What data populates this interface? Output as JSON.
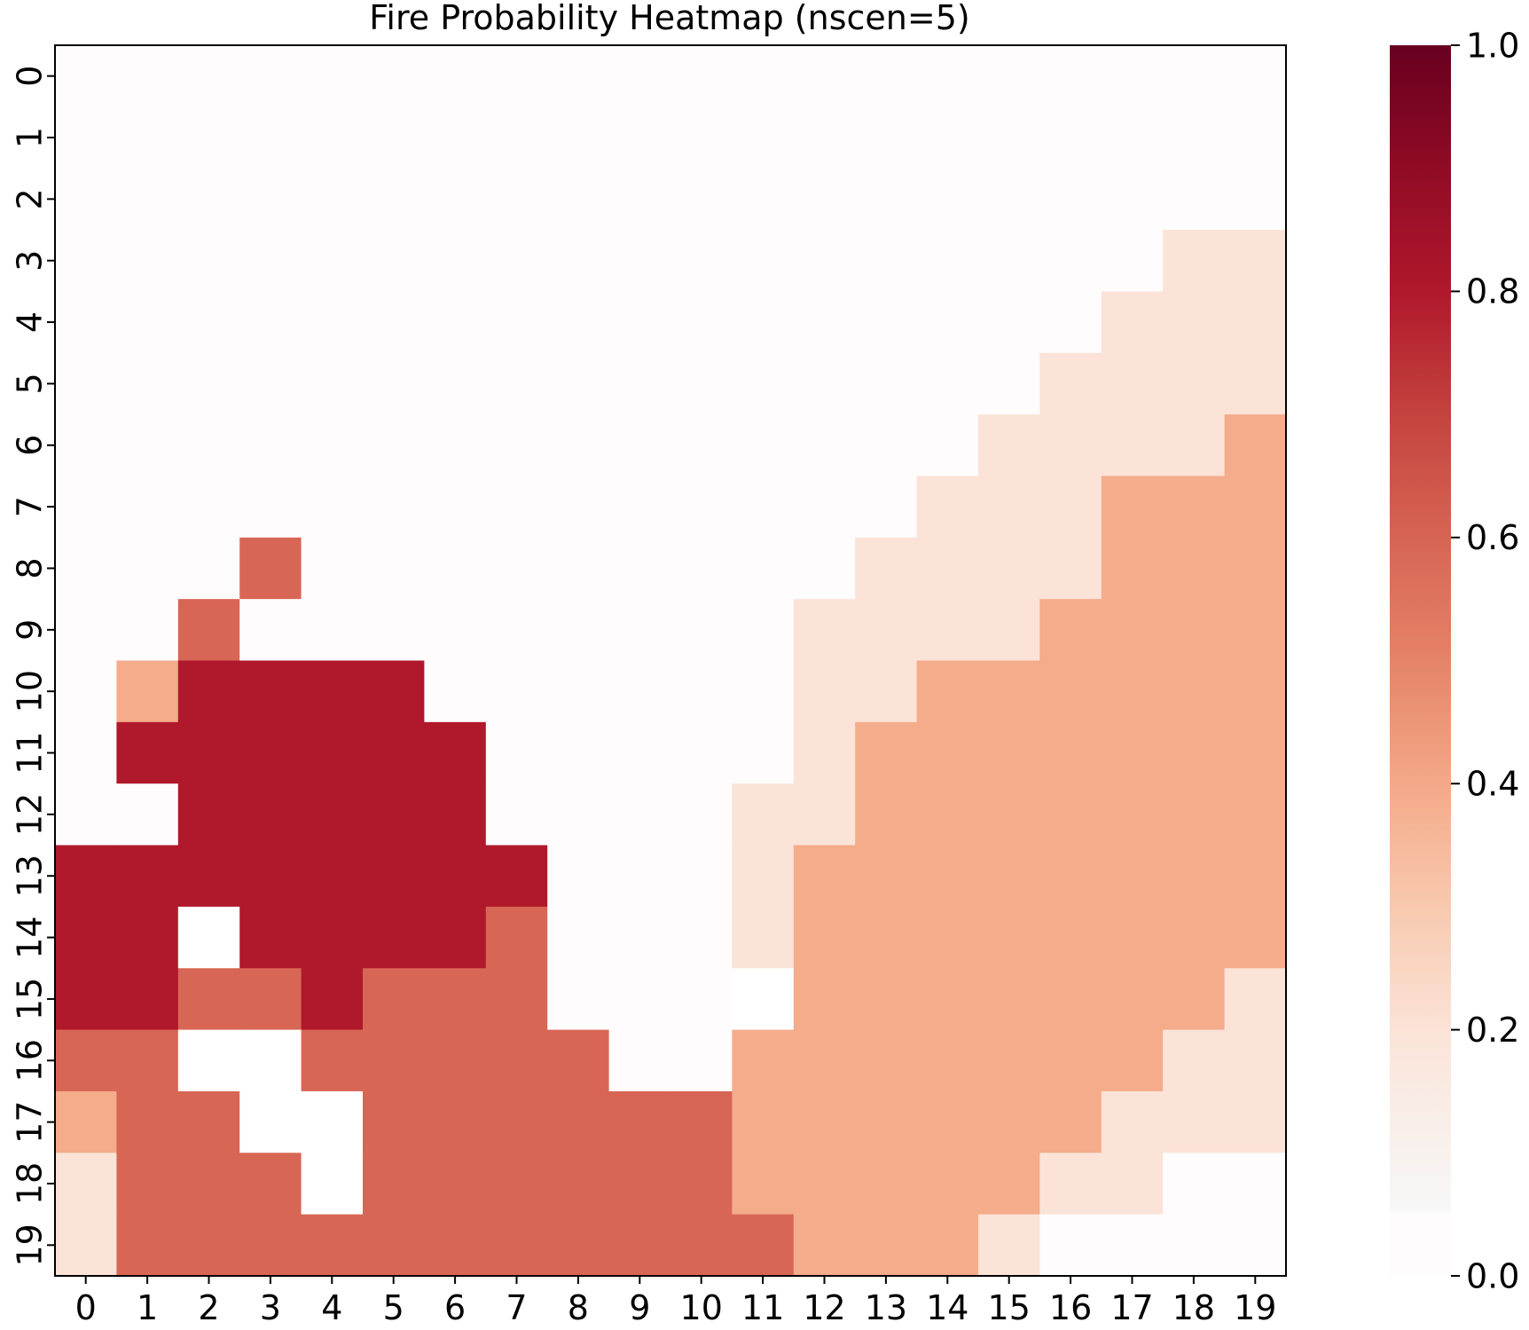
{
  "chart_data": {
    "type": "heatmap",
    "title": "Fire Probability Heatmap (nscen=5)",
    "xlabel": "",
    "ylabel": "",
    "x_ticks": [
      "0",
      "1",
      "2",
      "3",
      "4",
      "5",
      "6",
      "7",
      "8",
      "9",
      "10",
      "11",
      "12",
      "13",
      "14",
      "15",
      "16",
      "17",
      "18",
      "19"
    ],
    "y_ticks": [
      "0",
      "1",
      "2",
      "3",
      "4",
      "5",
      "6",
      "7",
      "8",
      "9",
      "10",
      "11",
      "12",
      "13",
      "14",
      "15",
      "16",
      "17",
      "18",
      "19"
    ],
    "colormap": "RdBu_r (upper half, white to dark red)",
    "vmin": 0.0,
    "vmax": 1.0,
    "colorbar_ticks": [
      "0.0",
      "0.2",
      "0.4",
      "0.6",
      "0.8",
      "1.0"
    ],
    "colorbar_values": [
      0.0,
      0.2,
      0.4,
      0.6,
      0.8,
      1.0
    ],
    "masked_color": "#ffffff",
    "masked_cells": [
      [
        2,
        14
      ],
      [
        2,
        16
      ],
      [
        3,
        16
      ],
      [
        3,
        17
      ],
      [
        4,
        17
      ],
      [
        4,
        18
      ],
      [
        11,
        15
      ]
    ],
    "values": [
      [
        0,
        0,
        0,
        0,
        0,
        0,
        0,
        0,
        0,
        0,
        0,
        0,
        0,
        0,
        0,
        0,
        0,
        0,
        0,
        0
      ],
      [
        0,
        0,
        0,
        0,
        0,
        0,
        0,
        0,
        0,
        0,
        0,
        0,
        0,
        0,
        0,
        0,
        0,
        0,
        0,
        0
      ],
      [
        0,
        0,
        0,
        0,
        0,
        0,
        0,
        0,
        0,
        0,
        0,
        0,
        0,
        0,
        0,
        0,
        0,
        0,
        0,
        0
      ],
      [
        0,
        0,
        0,
        0,
        0,
        0,
        0,
        0,
        0,
        0,
        0,
        0,
        0,
        0,
        0,
        0,
        0,
        0,
        0.2,
        0.2
      ],
      [
        0,
        0,
        0,
        0,
        0,
        0,
        0,
        0,
        0,
        0,
        0,
        0,
        0,
        0,
        0,
        0,
        0,
        0.2,
        0.2,
        0.2
      ],
      [
        0,
        0,
        0,
        0,
        0,
        0,
        0,
        0,
        0,
        0,
        0,
        0,
        0,
        0,
        0,
        0,
        0.2,
        0.2,
        0.2,
        0.2
      ],
      [
        0,
        0,
        0,
        0,
        0,
        0,
        0,
        0,
        0,
        0,
        0,
        0,
        0,
        0,
        0,
        0.2,
        0.2,
        0.2,
        0.2,
        0.4
      ],
      [
        0,
        0,
        0,
        0,
        0,
        0,
        0,
        0,
        0,
        0,
        0,
        0,
        0,
        0,
        0.2,
        0.2,
        0.2,
        0.4,
        0.4,
        0.4
      ],
      [
        0,
        0,
        0,
        0.6,
        0,
        0,
        0,
        0,
        0,
        0,
        0,
        0,
        0,
        0.2,
        0.2,
        0.2,
        0.2,
        0.4,
        0.4,
        0.4
      ],
      [
        0,
        0,
        0.6,
        0,
        0,
        0,
        0,
        0,
        0,
        0,
        0,
        0,
        0.2,
        0.2,
        0.2,
        0.2,
        0.4,
        0.4,
        0.4,
        0.4
      ],
      [
        0,
        0.4,
        0.8,
        0.8,
        0.8,
        0.8,
        0,
        0,
        0,
        0,
        0,
        0,
        0.2,
        0.2,
        0.4,
        0.4,
        0.4,
        0.4,
        0.4,
        0.4
      ],
      [
        0,
        0.8,
        0.8,
        0.8,
        0.8,
        0.8,
        0.8,
        0,
        0,
        0,
        0,
        0,
        0.2,
        0.4,
        0.4,
        0.4,
        0.4,
        0.4,
        0.4,
        0.4
      ],
      [
        0,
        0,
        0.8,
        0.8,
        0.8,
        0.8,
        0.8,
        0,
        0,
        0,
        0,
        0.2,
        0.2,
        0.4,
        0.4,
        0.4,
        0.4,
        0.4,
        0.4,
        0.4
      ],
      [
        0.8,
        0.8,
        0.8,
        0.8,
        0.8,
        0.8,
        0.8,
        0.8,
        0,
        0,
        0,
        0.2,
        0.4,
        0.4,
        0.4,
        0.4,
        0.4,
        0.4,
        0.4,
        0.4
      ],
      [
        0.8,
        0.8,
        null,
        0.8,
        0.8,
        0.8,
        0.8,
        0.6,
        0,
        0,
        0,
        0.2,
        0.4,
        0.4,
        0.4,
        0.4,
        0.4,
        0.4,
        0.4,
        0.4
      ],
      [
        0.8,
        0.8,
        0.6,
        0.6,
        0.8,
        0.6,
        0.6,
        0.6,
        0,
        0,
        0,
        null,
        0.4,
        0.4,
        0.4,
        0.4,
        0.4,
        0.4,
        0.4,
        0.2
      ],
      [
        0.6,
        0.6,
        null,
        null,
        0.6,
        0.6,
        0.6,
        0.6,
        0.6,
        0,
        0,
        0.4,
        0.4,
        0.4,
        0.4,
        0.4,
        0.4,
        0.4,
        0.2,
        0.2
      ],
      [
        0.4,
        0.6,
        0.6,
        null,
        null,
        0.6,
        0.6,
        0.6,
        0.6,
        0.6,
        0.6,
        0.4,
        0.4,
        0.4,
        0.4,
        0.4,
        0.4,
        0.2,
        0.2,
        0.2
      ],
      [
        0.2,
        0.6,
        0.6,
        0.6,
        null,
        0.6,
        0.6,
        0.6,
        0.6,
        0.6,
        0.6,
        0.4,
        0.4,
        0.4,
        0.4,
        0.4,
        0.2,
        0.2,
        0,
        0
      ],
      [
        0.2,
        0.6,
        0.6,
        0.6,
        0.6,
        0.6,
        0.6,
        0.6,
        0.6,
        0.6,
        0.6,
        0.6,
        0.4,
        0.4,
        0.4,
        0.2,
        0,
        0,
        0,
        0
      ]
    ]
  }
}
